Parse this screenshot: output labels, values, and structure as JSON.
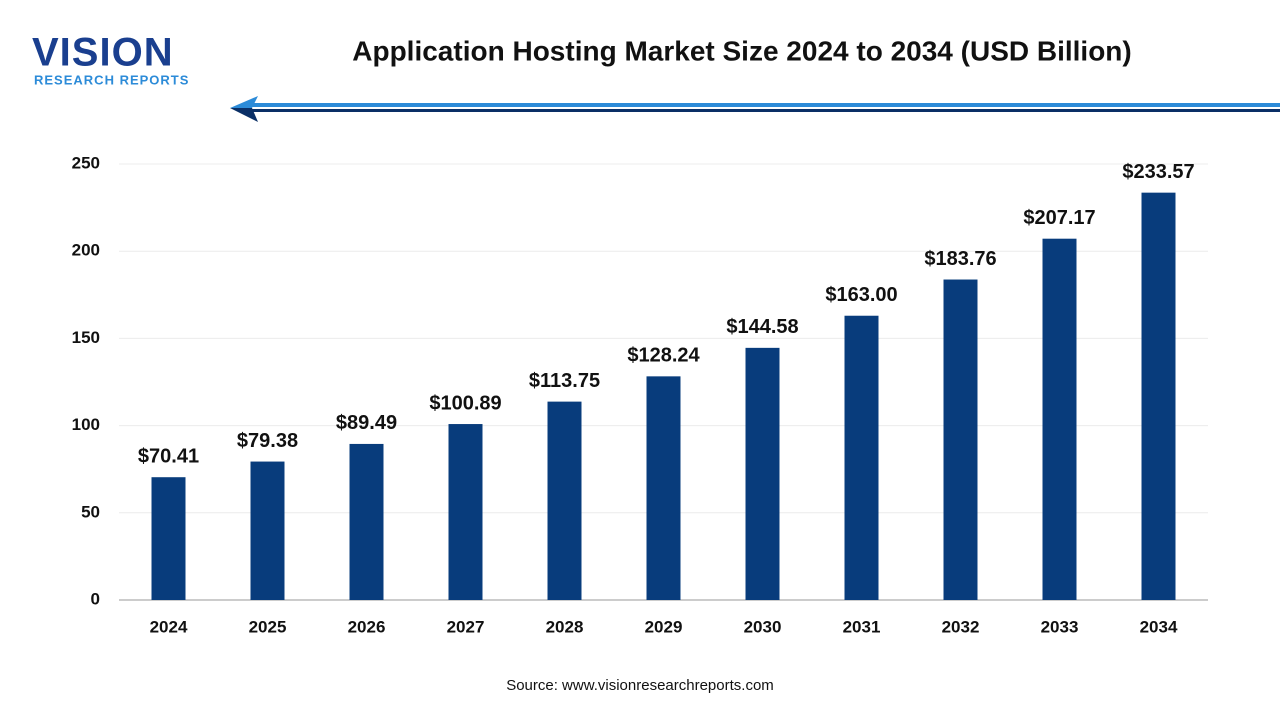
{
  "logo": {
    "name": "VISION",
    "tagline": "RESEARCH REPORTS"
  },
  "chart_data": {
    "type": "bar",
    "title": "Application Hosting Market Size 2024 to 2034 (USD Billion)",
    "source": "Source: www.visionresearchreports.com",
    "categories": [
      "2024",
      "2025",
      "2026",
      "2027",
      "2028",
      "2029",
      "2030",
      "2031",
      "2032",
      "2033",
      "2034"
    ],
    "values": [
      70.41,
      79.38,
      89.49,
      100.89,
      113.75,
      128.24,
      144.58,
      163.0,
      183.76,
      207.17,
      233.57
    ],
    "value_labels": [
      "$70.41",
      "$79.38",
      "$89.49",
      "$100.89",
      "$113.75",
      "$128.24",
      "$144.58",
      "$163.00",
      "$183.76",
      "$207.17",
      "$233.57"
    ],
    "color": "#083c7c",
    "ylim": [
      0,
      250
    ],
    "yticks": [
      0,
      50,
      100,
      150,
      200,
      250
    ],
    "grid": true
  }
}
